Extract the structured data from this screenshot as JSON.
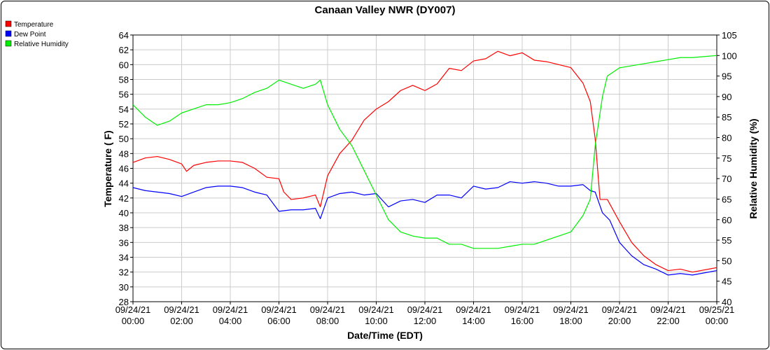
{
  "chart_data": {
    "type": "line",
    "title": "Canaan Valley NWR (DY007)",
    "xlabel": "Date/Time (EDT)",
    "ylabel": "Temperature ( F)",
    "y2label": "Relative Humidity (%)",
    "xlim": [
      0,
      24
    ],
    "ylim": [
      28,
      64
    ],
    "y2lim": [
      40,
      105
    ],
    "grid": true,
    "legend_placement": "top-left",
    "x_ticks": [
      {
        "value": 0,
        "date": "09/24/21",
        "time": "00:00"
      },
      {
        "value": 2,
        "date": "09/24/21",
        "time": "02:00"
      },
      {
        "value": 4,
        "date": "09/24/21",
        "time": "04:00"
      },
      {
        "value": 6,
        "date": "09/24/21",
        "time": "06:00"
      },
      {
        "value": 8,
        "date": "09/24/21",
        "time": "08:00"
      },
      {
        "value": 10,
        "date": "09/24/21",
        "time": "10:00"
      },
      {
        "value": 12,
        "date": "09/24/21",
        "time": "12:00"
      },
      {
        "value": 14,
        "date": "09/24/21",
        "time": "14:00"
      },
      {
        "value": 16,
        "date": "09/24/21",
        "time": "16:00"
      },
      {
        "value": 18,
        "date": "09/24/21",
        "time": "18:00"
      },
      {
        "value": 20,
        "date": "09/24/21",
        "time": "20:00"
      },
      {
        "value": 22,
        "date": "09/24/21",
        "time": "22:00"
      },
      {
        "value": 24,
        "date": "09/25/21",
        "time": "00:00"
      }
    ],
    "y_ticks": [
      28,
      30,
      32,
      34,
      36,
      38,
      40,
      42,
      44,
      46,
      48,
      50,
      52,
      54,
      56,
      58,
      60,
      62,
      64
    ],
    "y2_ticks": [
      40,
      45,
      50,
      55,
      60,
      65,
      70,
      75,
      80,
      85,
      90,
      95,
      100,
      105
    ],
    "series": [
      {
        "name": "Temperature",
        "axis": "left",
        "color": "#ff0000",
        "points": [
          [
            0,
            46.8
          ],
          [
            0.5,
            47.4
          ],
          [
            1,
            47.6
          ],
          [
            1.5,
            47.2
          ],
          [
            2,
            46.6
          ],
          [
            2.2,
            45.6
          ],
          [
            2.5,
            46.4
          ],
          [
            3,
            46.8
          ],
          [
            3.5,
            47.0
          ],
          [
            4,
            47.0
          ],
          [
            4.5,
            46.8
          ],
          [
            5,
            46.0
          ],
          [
            5.5,
            44.8
          ],
          [
            6,
            44.6
          ],
          [
            6.2,
            42.8
          ],
          [
            6.5,
            41.8
          ],
          [
            7,
            42.0
          ],
          [
            7.5,
            42.4
          ],
          [
            7.7,
            40.8
          ],
          [
            8,
            45.0
          ],
          [
            8.5,
            48.0
          ],
          [
            9,
            49.8
          ],
          [
            9.5,
            52.5
          ],
          [
            10,
            54.0
          ],
          [
            10.5,
            55.0
          ],
          [
            11,
            56.5
          ],
          [
            11.5,
            57.2
          ],
          [
            12,
            56.5
          ],
          [
            12.5,
            57.4
          ],
          [
            13,
            59.5
          ],
          [
            13.5,
            59.2
          ],
          [
            14,
            60.5
          ],
          [
            14.5,
            60.8
          ],
          [
            15,
            61.8
          ],
          [
            15.5,
            61.2
          ],
          [
            16,
            61.6
          ],
          [
            16.5,
            60.6
          ],
          [
            17,
            60.4
          ],
          [
            17.5,
            60.0
          ],
          [
            18,
            59.6
          ],
          [
            18.5,
            57.5
          ],
          [
            18.8,
            55.0
          ],
          [
            19,
            50.0
          ],
          [
            19.2,
            41.8
          ],
          [
            19.5,
            41.8
          ],
          [
            20,
            38.8
          ],
          [
            20.5,
            36.0
          ],
          [
            21,
            34.2
          ],
          [
            21.5,
            33.0
          ],
          [
            22,
            32.2
          ],
          [
            22.5,
            32.4
          ],
          [
            23,
            32.0
          ],
          [
            24,
            32.6
          ]
        ]
      },
      {
        "name": "Dew Point",
        "axis": "left",
        "color": "#0000ff",
        "points": [
          [
            0,
            43.4
          ],
          [
            0.5,
            43.0
          ],
          [
            1,
            42.8
          ],
          [
            1.5,
            42.6
          ],
          [
            2,
            42.2
          ],
          [
            2.5,
            42.8
          ],
          [
            3,
            43.4
          ],
          [
            3.5,
            43.6
          ],
          [
            4,
            43.6
          ],
          [
            4.5,
            43.4
          ],
          [
            5,
            42.8
          ],
          [
            5.5,
            42.4
          ],
          [
            6,
            40.2
          ],
          [
            6.5,
            40.4
          ],
          [
            7,
            40.4
          ],
          [
            7.5,
            40.6
          ],
          [
            7.7,
            39.2
          ],
          [
            8,
            42.0
          ],
          [
            8.5,
            42.6
          ],
          [
            9,
            42.8
          ],
          [
            9.5,
            42.4
          ],
          [
            10,
            42.6
          ],
          [
            10.5,
            40.8
          ],
          [
            11,
            41.6
          ],
          [
            11.5,
            41.8
          ],
          [
            12,
            41.4
          ],
          [
            12.5,
            42.4
          ],
          [
            13,
            42.4
          ],
          [
            13.5,
            42.0
          ],
          [
            14,
            43.6
          ],
          [
            14.5,
            43.2
          ],
          [
            15,
            43.4
          ],
          [
            15.5,
            44.2
          ],
          [
            16,
            44.0
          ],
          [
            16.5,
            44.2
          ],
          [
            17,
            44.0
          ],
          [
            17.5,
            43.6
          ],
          [
            18,
            43.6
          ],
          [
            18.5,
            43.8
          ],
          [
            18.8,
            43.0
          ],
          [
            19,
            42.8
          ],
          [
            19.3,
            40.0
          ],
          [
            19.6,
            39.0
          ],
          [
            20,
            36.0
          ],
          [
            20.5,
            34.2
          ],
          [
            21,
            33.0
          ],
          [
            21.5,
            32.4
          ],
          [
            22,
            31.6
          ],
          [
            22.5,
            31.8
          ],
          [
            23,
            31.6
          ],
          [
            24,
            32.2
          ]
        ]
      },
      {
        "name": "Relative Humidity",
        "axis": "right",
        "color": "#00ee00",
        "points": [
          [
            0,
            88
          ],
          [
            0.5,
            85
          ],
          [
            1,
            83
          ],
          [
            1.5,
            84
          ],
          [
            2,
            86
          ],
          [
            2.5,
            87
          ],
          [
            3,
            88
          ],
          [
            3.5,
            88
          ],
          [
            4,
            88.5
          ],
          [
            4.5,
            89.5
          ],
          [
            5,
            91
          ],
          [
            5.5,
            92
          ],
          [
            6,
            94
          ],
          [
            6.5,
            93
          ],
          [
            7,
            92
          ],
          [
            7.5,
            93
          ],
          [
            7.7,
            94
          ],
          [
            8,
            88
          ],
          [
            8.5,
            82
          ],
          [
            9,
            78
          ],
          [
            9.5,
            72
          ],
          [
            10,
            66
          ],
          [
            10.5,
            60
          ],
          [
            11,
            57
          ],
          [
            11.5,
            56
          ],
          [
            12,
            55.5
          ],
          [
            12.5,
            55.5
          ],
          [
            13,
            54
          ],
          [
            13.5,
            54
          ],
          [
            14,
            53
          ],
          [
            14.5,
            53
          ],
          [
            15,
            53
          ],
          [
            15.5,
            53.5
          ],
          [
            16,
            54
          ],
          [
            16.5,
            54
          ],
          [
            17,
            55
          ],
          [
            17.5,
            56
          ],
          [
            18,
            57
          ],
          [
            18.5,
            61
          ],
          [
            18.8,
            65
          ],
          [
            19,
            78
          ],
          [
            19.3,
            90
          ],
          [
            19.5,
            95
          ],
          [
            20,
            97
          ],
          [
            20.5,
            97.5
          ],
          [
            21,
            98
          ],
          [
            21.5,
            98.5
          ],
          [
            22,
            99
          ],
          [
            22.5,
            99.5
          ],
          [
            23,
            99.5
          ],
          [
            24,
            100
          ]
        ]
      }
    ]
  }
}
